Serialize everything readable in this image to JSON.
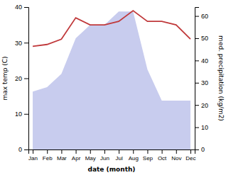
{
  "chart_data": {
    "type": "line",
    "categories": [
      "Jan",
      "Feb",
      "Mar",
      "Apr",
      "May",
      "Jun",
      "Jul",
      "Aug",
      "Sep",
      "Oct",
      "Nov",
      "Dec"
    ],
    "xlabel": "date (month)",
    "ylabel": "max temp (C)",
    "y2label": "med. precipitation (kg/m2)",
    "ylim": [
      0,
      40
    ],
    "yticks": [
      0,
      10,
      20,
      30,
      40
    ],
    "y2lim": [
      0,
      64
    ],
    "y2ticks": [
      0,
      10,
      20,
      30,
      40,
      50,
      60
    ],
    "grid": false,
    "series": [
      {
        "type": "area",
        "axis": "y2",
        "color": "#c8ccee",
        "values": [
          26,
          28,
          34,
          50,
          56,
          56,
          62,
          62,
          36,
          22,
          22,
          22
        ]
      },
      {
        "type": "line",
        "color": "#c0393b",
        "values": [
          29,
          29.5,
          31,
          37,
          35,
          35,
          36,
          39,
          36,
          36,
          35,
          31
        ]
      }
    ]
  }
}
